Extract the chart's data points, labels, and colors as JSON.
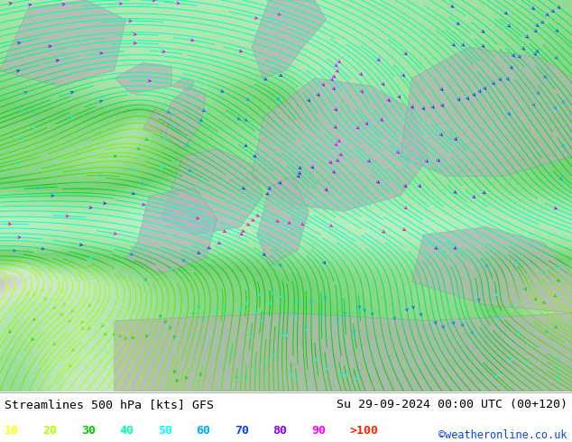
{
  "title_left": "Streamlines 500 hPa [kts] GFS",
  "title_right": "Su 29-09-2024 00:00 UTC (00+120)",
  "credit": "©weatheronline.co.uk",
  "legend_values": [
    "10",
    "20",
    "30",
    "40",
    "50",
    "60",
    "70",
    "80",
    "90",
    ">100"
  ],
  "legend_colors": [
    "#ffff00",
    "#aaff00",
    "#00cc00",
    "#00ffaa",
    "#00ffff",
    "#00aaff",
    "#0044ff",
    "#8800ff",
    "#ff00ff",
    "#ff2200"
  ],
  "figsize": [
    6.34,
    4.9
  ],
  "dpi": 100,
  "title_color": "#000000",
  "credit_color": "#0044ff",
  "bottom_bg": "#ffffff",
  "speed_clim": [
    0,
    110
  ]
}
